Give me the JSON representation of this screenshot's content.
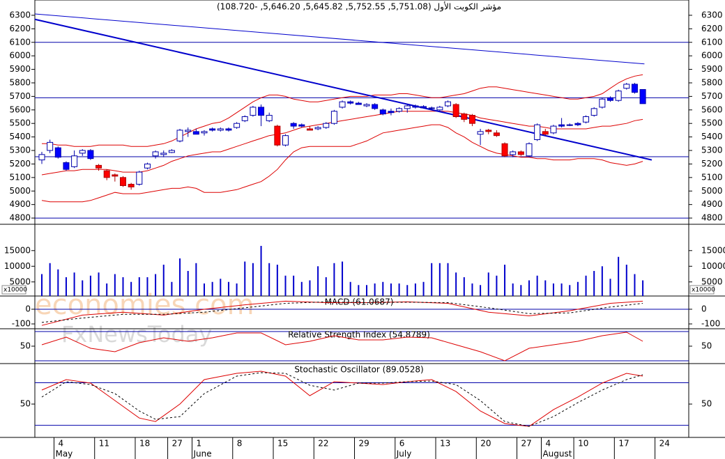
{
  "watermarks": [
    "economies.com",
    "FxNewsToday"
  ],
  "chart_data": [
    {
      "type": "candlestick",
      "title": "مؤشر الكويت الأول (5,751.08, 5,752.55, 5,645.82, 5,646.20, -108.720)",
      "categories": [
        null,
        null,
        "4",
        null,
        null,
        null,
        null,
        "11",
        null,
        null,
        null,
        null,
        "18",
        null,
        null,
        null,
        "27",
        null,
        null,
        "1",
        null,
        null,
        null,
        null,
        "8",
        null,
        null,
        null,
        null,
        "15",
        null,
        null,
        null,
        null,
        "22",
        null,
        null,
        null,
        null,
        "29",
        null,
        null,
        null,
        null,
        "6",
        null,
        null,
        null,
        null,
        "13",
        null,
        null,
        null,
        null,
        "20",
        null,
        null,
        null,
        null,
        "27",
        null,
        null,
        "4",
        null,
        null,
        null,
        "10",
        null,
        null,
        null,
        null,
        "17",
        null,
        null,
        null,
        null,
        "24",
        null,
        null,
        null
      ],
      "months": [
        null,
        null,
        "May",
        null,
        null,
        null,
        null,
        null,
        null,
        null,
        null,
        null,
        null,
        null,
        null,
        null,
        null,
        null,
        null,
        "June",
        null,
        null,
        null,
        null,
        null,
        null,
        null,
        null,
        null,
        null,
        null,
        null,
        null,
        null,
        null,
        null,
        null,
        null,
        null,
        null,
        null,
        null,
        null,
        null,
        "July",
        null,
        null,
        null,
        null,
        null,
        null,
        null,
        null,
        null,
        null,
        null,
        null,
        null,
        null,
        null,
        null,
        null,
        "August",
        null,
        null,
        null,
        null,
        null,
        null,
        null,
        null,
        null,
        null,
        null,
        null,
        null,
        null,
        null,
        null,
        null
      ],
      "open": [
        5230,
        5300,
        5320,
        5210,
        5180,
        5280,
        5300,
        5190,
        5150,
        5120,
        5100,
        5050,
        5050,
        5170,
        5260,
        5270,
        5285,
        5370,
        5440,
        5440,
        5430,
        5460,
        5450,
        5460,
        5470,
        5520,
        5560,
        5620,
        5520,
        5480,
        5340,
        5500,
        5490,
        5460,
        5460,
        5470,
        5500,
        5620,
        5660,
        5650,
        5630,
        5640,
        5600,
        5590,
        5590,
        5610,
        5630,
        5625,
        5615,
        5600,
        5630,
        5640,
        5570,
        5560,
        5420,
        5450,
        5430,
        5350,
        5270,
        5290,
        5260,
        5380,
        5440,
        5430,
        5490,
        5490,
        5500,
        5510,
        5560,
        5620,
        5690,
        5670,
        5760,
        5790,
        5751.08,
        null,
        null,
        null,
        null,
        null
      ],
      "high": [
        5290,
        5380,
        5330,
        5220,
        5300,
        5310,
        5310,
        5200,
        5160,
        5130,
        5110,
        5060,
        5150,
        5210,
        5300,
        5300,
        5310,
        5460,
        5470,
        5460,
        5450,
        5470,
        5470,
        5470,
        5510,
        5560,
        5630,
        5640,
        5580,
        5490,
        5420,
        5510,
        5500,
        5480,
        5480,
        5510,
        5600,
        5670,
        5670,
        5660,
        5650,
        5650,
        5610,
        5610,
        5620,
        5640,
        5640,
        5635,
        5625,
        5630,
        5670,
        5650,
        5580,
        5570,
        5460,
        5460,
        5450,
        5360,
        5300,
        5300,
        5360,
        5500,
        5460,
        5490,
        5540,
        5500,
        5510,
        5560,
        5620,
        5690,
        5700,
        5750,
        5800,
        5800,
        5752.55,
        null,
        null,
        null,
        null,
        null
      ],
      "low": [
        5200,
        5280,
        5240,
        5150,
        5170,
        5260,
        5230,
        5150,
        5080,
        5070,
        5030,
        5010,
        5040,
        5160,
        5240,
        5250,
        5280,
        5360,
        5400,
        5420,
        5410,
        5440,
        5440,
        5440,
        5460,
        5510,
        5550,
        5480,
        5510,
        5330,
        5330,
        5460,
        5470,
        5450,
        5450,
        5460,
        5490,
        5610,
        5640,
        5640,
        5620,
        5600,
        5560,
        5560,
        5580,
        5580,
        5610,
        5610,
        5600,
        5590,
        5620,
        5540,
        5510,
        5480,
        5340,
        5420,
        5400,
        5250,
        5250,
        5260,
        5250,
        5370,
        5410,
        5420,
        5470,
        5480,
        5480,
        5500,
        5550,
        5610,
        5660,
        5660,
        5750,
        5720,
        5645.82,
        null,
        null,
        null,
        null,
        null
      ],
      "close": [
        5270,
        5360,
        5250,
        5160,
        5260,
        5300,
        5240,
        5170,
        5100,
        5110,
        5040,
        5030,
        5140,
        5200,
        5290,
        5280,
        5300,
        5450,
        5450,
        5420,
        5440,
        5450,
        5460,
        5450,
        5500,
        5550,
        5620,
        5560,
        5560,
        5340,
        5410,
        5480,
        5480,
        5450,
        5470,
        5500,
        5590,
        5660,
        5650,
        5640,
        5640,
        5610,
        5570,
        5580,
        5610,
        5630,
        5620,
        5615,
        5610,
        5620,
        5660,
        5550,
        5530,
        5500,
        5440,
        5440,
        5410,
        5260,
        5290,
        5270,
        5350,
        5490,
        5420,
        5480,
        5480,
        5485,
        5490,
        5550,
        5610,
        5680,
        5670,
        5740,
        5790,
        5730,
        5646.2,
        null,
        null,
        null,
        null,
        null
      ],
      "fills": [
        "#ffffff",
        "#ffffff",
        "#0000ff",
        "#0000ff",
        "#ffffff",
        "#ffffff",
        "#0000ff",
        "#ff0000",
        "#ff0000",
        "#ff0000",
        "#ff0000",
        "#ff0000",
        "#ffffff",
        "#ffffff",
        "#ffffff",
        "#ffffff",
        "#ffffff",
        "#ffffff",
        "#ffffff",
        "#0000ff",
        "#ffffff",
        "#0000ff",
        "#ffffff",
        "#0000ff",
        "#ffffff",
        "#ffffff",
        "#ffffff",
        "#0000ff",
        "#ffffff",
        "#ff0000",
        "#ffffff",
        "#0000ff",
        "#0000ff",
        "#ff0000",
        "#ffffff",
        "#ffffff",
        "#ffffff",
        "#ffffff",
        "#0000ff",
        "#0000ff",
        "#ffffff",
        "#0000ff",
        "#0000ff",
        "#0000ff",
        "#ffffff",
        "#ffffff",
        "#0000ff",
        "#0000ff",
        "#0000ff",
        "#ffffff",
        "#ffffff",
        "#ff0000",
        "#ff0000",
        "#ff0000",
        "#ffffff",
        "#ff0000",
        "#ff0000",
        "#ff0000",
        "#ffffff",
        "#ff0000",
        "#ffffff",
        "#ffffff",
        "#ff0000",
        "#ffffff",
        "#0000ff",
        "#0000ff",
        "#0000ff",
        "#ffffff",
        "#ffffff",
        "#ffffff",
        "#0000ff",
        "#ffffff",
        "#ffffff",
        "#0000ff",
        "#0000ff",
        null,
        null,
        null,
        null,
        null
      ],
      "bands": [
        {
          "color": "#dd0000",
          "values": [
            5350,
            5350,
            5340,
            5340,
            5330,
            5330,
            5330,
            5340,
            5340,
            5340,
            5340,
            5330,
            5330,
            5330,
            5340,
            5350,
            5370,
            5400,
            5430,
            5460,
            5480,
            5500,
            5510,
            5540,
            5580,
            5620,
            5660,
            5690,
            5710,
            5710,
            5700,
            5680,
            5670,
            5660,
            5660,
            5670,
            5680,
            5690,
            5700,
            5700,
            5700,
            5710,
            5710,
            5710,
            5720,
            5720,
            5710,
            5700,
            5690,
            5690,
            5700,
            5710,
            5720,
            5740,
            5760,
            5770,
            5770,
            5760,
            5750,
            5740,
            5730,
            5720,
            5710,
            5700,
            5690,
            5680,
            5680,
            5690,
            5700,
            5720,
            5760,
            5800,
            5830,
            5850,
            5860,
            null,
            null,
            null,
            null,
            null
          ]
        },
        {
          "color": "#dd0000",
          "values": [
            5120,
            5130,
            5140,
            5150,
            5150,
            5160,
            5160,
            5160,
            5160,
            5150,
            5140,
            5140,
            5140,
            5150,
            5170,
            5190,
            5220,
            5240,
            5260,
            5270,
            5280,
            5290,
            5290,
            5310,
            5330,
            5350,
            5370,
            5390,
            5410,
            5420,
            5430,
            5450,
            5470,
            5480,
            5490,
            5500,
            5510,
            5520,
            5530,
            5540,
            5550,
            5560,
            5570,
            5580,
            5590,
            5590,
            5590,
            5590,
            5590,
            5590,
            5590,
            5580,
            5570,
            5560,
            5540,
            5530,
            5520,
            5510,
            5500,
            5490,
            5480,
            5480,
            5470,
            5460,
            5460,
            5460,
            5460,
            5460,
            5470,
            5480,
            5480,
            5490,
            5500,
            5520,
            5530,
            null,
            null,
            null,
            null,
            null
          ]
        },
        {
          "color": "#dd0000",
          "values": [
            4930,
            4920,
            4920,
            4920,
            4920,
            4920,
            4930,
            4950,
            4970,
            4990,
            4980,
            4980,
            4980,
            4990,
            5000,
            5010,
            5020,
            5020,
            5030,
            5020,
            4990,
            4990,
            4990,
            5000,
            5010,
            5030,
            5050,
            5070,
            5110,
            5160,
            5230,
            5290,
            5320,
            5330,
            5330,
            5330,
            5330,
            5330,
            5330,
            5350,
            5370,
            5400,
            5430,
            5440,
            5450,
            5460,
            5470,
            5480,
            5490,
            5490,
            5470,
            5430,
            5400,
            5360,
            5330,
            5300,
            5280,
            5270,
            5260,
            5250,
            5250,
            5240,
            5240,
            5230,
            5230,
            5230,
            5240,
            5240,
            5240,
            5230,
            5210,
            5200,
            5190,
            5200,
            5220,
            null,
            null,
            null,
            null,
            null
          ]
        }
      ],
      "trendlines": [
        {
          "color": "#0000cc",
          "width": 1,
          "from": [
            -0.86,
            6310
          ],
          "to": [
            74.2,
            5940
          ]
        },
        {
          "color": "#0000cc",
          "width": 2,
          "from": [
            -0.86,
            6270
          ],
          "to": [
            75.1,
            5230
          ]
        }
      ],
      "hlines": [
        6100,
        5690,
        5254,
        4800
      ],
      "hline_color": "#0000aa",
      "ylim": [
        4754,
        6413
      ],
      "yticks": [
        4800,
        4900,
        5000,
        5100,
        5200,
        5300,
        5400,
        5500,
        5600,
        5700,
        5800,
        5900,
        6000,
        6100,
        6200,
        6300
      ]
    },
    {
      "type": "bar",
      "values": [
        7500,
        11000,
        9000,
        6500,
        8000,
        5500,
        7000,
        8000,
        4500,
        7500,
        6500,
        5000,
        6500,
        6500,
        7500,
        10500,
        5000,
        12500,
        8500,
        11000,
        4500,
        5000,
        6000,
        5000,
        4500,
        11500,
        11000,
        16500,
        11000,
        10500,
        7000,
        7000,
        5000,
        5500,
        10000,
        6500,
        11000,
        11500,
        5000,
        4000,
        4000,
        4500,
        5000,
        4500,
        4500,
        4000,
        4500,
        5000,
        11000,
        11000,
        11000,
        8000,
        6500,
        4500,
        4000,
        8000,
        7000,
        10500,
        4500,
        4000,
        5500,
        7000,
        5500,
        4500,
        4500,
        4000,
        5000,
        7000,
        8500,
        10000,
        6000,
        13000,
        10500,
        7500,
        5500,
        null,
        null,
        null,
        null,
        null
      ],
      "color": "#0000cc",
      "unit_label": "x10000",
      "ylim": [
        500,
        23400
      ],
      "yticks": [
        5000,
        10000,
        15000
      ]
    },
    {
      "type": "line",
      "title": "MACD (61.0687)",
      "x": [
        0,
        5,
        10,
        15,
        20,
        25,
        30,
        35,
        40,
        45,
        50,
        55,
        60,
        65,
        70,
        74
      ],
      "series": [
        {
          "color": "#dd0000",
          "dashed": false,
          "values": [
            -110,
            -40,
            -20,
            -40,
            0,
            30,
            55,
            45,
            45,
            50,
            40,
            -20,
            -45,
            -10,
            40,
            55
          ]
        },
        {
          "color": "#000000",
          "dashed": true,
          "values": [
            -90,
            -60,
            -35,
            -35,
            -20,
            10,
            40,
            50,
            45,
            48,
            45,
            10,
            -30,
            -25,
            15,
            40
          ]
        }
      ],
      "hlines": [
        0
      ],
      "ylim": [
        -133,
        90
      ],
      "yticks": [
        0,
        -100
      ]
    },
    {
      "type": "line",
      "title": "Relative Strength Index (54.8789)",
      "x": [
        0,
        3,
        6,
        9,
        12,
        15,
        18,
        21,
        24,
        27,
        30,
        33,
        36,
        39,
        42,
        45,
        48,
        51,
        54,
        57,
        60,
        63,
        66,
        69,
        72,
        74
      ],
      "series": [
        {
          "color": "#dd0000",
          "dashed": false,
          "values": [
            51.9,
            62.4,
            47.1,
            42.4,
            54.8,
            61.4,
            56.7,
            61.4,
            68.1,
            68.1,
            51.9,
            56.7,
            64.3,
            58.6,
            58.6,
            62.4,
            61.4,
            51.9,
            42.4,
            30,
            47.1,
            51.9,
            56.7,
            64.3,
            69,
            56.7
          ]
        }
      ],
      "hlines": [
        70,
        30
      ],
      "ylim": [
        26.2,
        73.8
      ],
      "yticks": [
        50
      ]
    },
    {
      "type": "line",
      "title": "Stochastic Oscillator (89.0528)",
      "x": [
        0,
        3,
        6,
        9,
        12,
        14,
        17,
        20,
        24,
        27,
        30,
        33,
        36,
        39,
        42,
        45,
        48,
        51,
        54,
        57,
        60,
        63,
        66,
        69,
        72,
        74
      ],
      "series": [
        {
          "color": "#dd0000",
          "dashed": false,
          "values": [
            69.7,
            84.4,
            79.5,
            54.9,
            30.3,
            25.4,
            50,
            84.4,
            93.3,
            96.2,
            89.3,
            61.8,
            81.5,
            79.5,
            77.5,
            81.5,
            84.4,
            67.7,
            40.2,
            22.5,
            18.5,
            42.1,
            59.8,
            79.5,
            93.3,
            89.3
          ]
        },
        {
          "color": "#000000",
          "dashed": true,
          "values": [
            59.8,
            81.5,
            77.5,
            64.7,
            40.2,
            28.4,
            32.3,
            64.7,
            89.3,
            94.2,
            93.3,
            76.5,
            69.7,
            79.5,
            79.5,
            81.5,
            82.4,
            77.5,
            54.9,
            25.4,
            18.5,
            32.3,
            52,
            69.7,
            84.4,
            91.3
          ]
        }
      ],
      "hlines": [
        80,
        20
      ],
      "ylim": [
        3,
        107
      ],
      "yticks": [
        50
      ]
    }
  ]
}
